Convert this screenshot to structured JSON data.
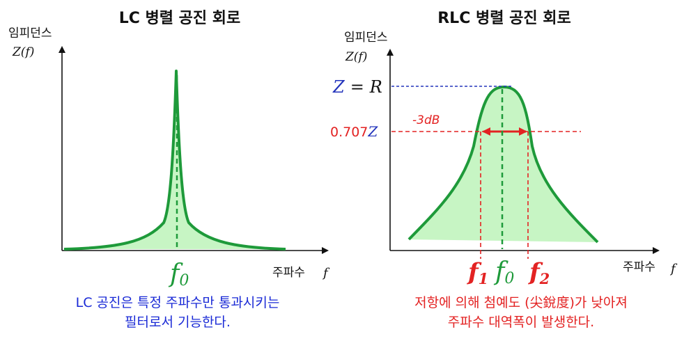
{
  "left": {
    "title": "LC 병렬 공진 회로",
    "y_axis_label": "임피던스",
    "y_axis_symbol": "Z(f)",
    "x_axis_label": "주파수",
    "x_axis_symbol": "f",
    "peak_label": "f",
    "peak_sub": "0",
    "caption_lines": [
      "LC 공진은 특정 주파수만 통과시키는",
      "필터로서 기능한다."
    ]
  },
  "right": {
    "title": "RLC 병렬 공진 회로",
    "y_axis_label": "임피던스",
    "y_axis_symbol": "Z(f)",
    "x_axis_label": "주파수",
    "x_axis_symbol": "f",
    "z_label": "Z",
    "z_equals": "=",
    "z_value": "R",
    "half_value": "0.707",
    "half_symbol": "Z",
    "bandwidth_label": "-3dB",
    "f1_label": "f",
    "f1_sub": "1",
    "f0_label": "f",
    "f0_sub": "0",
    "f2_label": "f",
    "f2_sub": "2",
    "caption_lines": [
      "저항에 의해 첨예도 (尖銳度)가 낮아져",
      "주파수 대역폭이 발생한다."
    ]
  },
  "colors": {
    "curve": "#1e9a3a",
    "fill": "#c7f5c4",
    "red": "#e32222",
    "blue": "#1a2ad6",
    "navy": "#2233bb"
  }
}
